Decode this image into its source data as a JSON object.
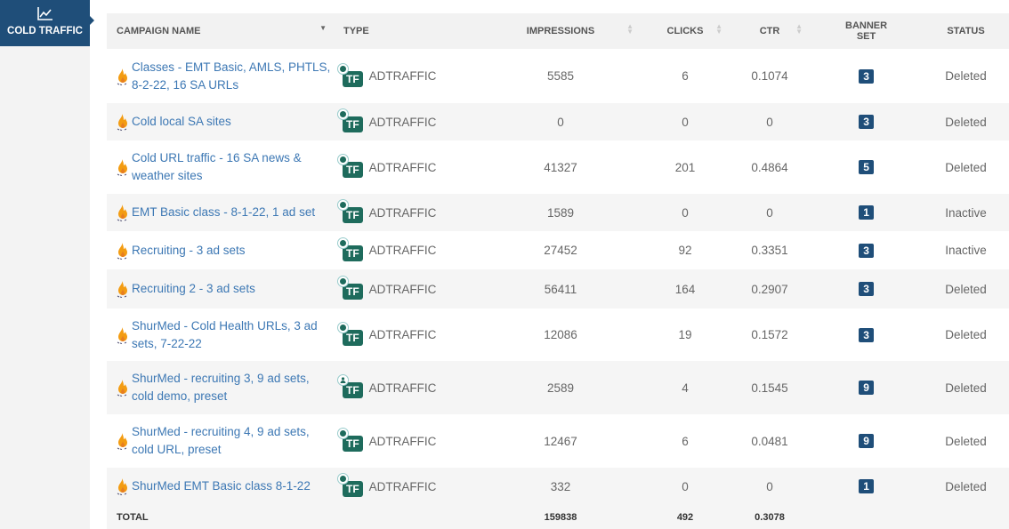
{
  "sidebar": {
    "tab": {
      "label": "COLD TRAFFIC",
      "icon": "line-chart-icon"
    }
  },
  "table": {
    "headers": {
      "name": "CAMPAIGN NAME",
      "type": "TYPE",
      "impressions": "IMPRESSIONS",
      "clicks": "CLICKS",
      "ctr": "CTR",
      "banner_set": "BANNER SET",
      "status": "STATUS"
    },
    "rows": [
      {
        "name": "Classes - EMT Basic, AMLS, PHTLS, 8-2-22, 16 SA URLs",
        "type_badge": "TF",
        "type": "ADTRAFFIC",
        "target_icon": "globe-icon",
        "impressions": "5585",
        "clicks": "6",
        "ctr": "0.1074",
        "banner_set": "3",
        "status": "Deleted"
      },
      {
        "name": "Cold local SA sites",
        "type_badge": "TF",
        "type": "ADTRAFFIC",
        "target_icon": "globe-icon",
        "impressions": "0",
        "clicks": "0",
        "ctr": "0",
        "banner_set": "3",
        "status": "Deleted"
      },
      {
        "name": "Cold URL traffic - 16 SA news & weather sites",
        "type_badge": "TF",
        "type": "ADTRAFFIC",
        "target_icon": "globe-icon",
        "impressions": "41327",
        "clicks": "201",
        "ctr": "0.4864",
        "banner_set": "5",
        "status": "Deleted"
      },
      {
        "name": "EMT Basic class - 8-1-22, 1 ad set",
        "type_badge": "TF",
        "type": "ADTRAFFIC",
        "target_icon": "globe-icon",
        "impressions": "1589",
        "clicks": "0",
        "ctr": "0",
        "banner_set": "1",
        "status": "Inactive"
      },
      {
        "name": "Recruiting - 3 ad sets",
        "type_badge": "TF",
        "type": "ADTRAFFIC",
        "target_icon": "globe-icon",
        "impressions": "27452",
        "clicks": "92",
        "ctr": "0.3351",
        "banner_set": "3",
        "status": "Inactive"
      },
      {
        "name": "Recruiting 2 - 3 ad sets",
        "type_badge": "TF",
        "type": "ADTRAFFIC",
        "target_icon": "globe-icon",
        "impressions": "56411",
        "clicks": "164",
        "ctr": "0.2907",
        "banner_set": "3",
        "status": "Deleted"
      },
      {
        "name": "ShurMed - Cold Health URLs, 3 ad sets, 7-22-22",
        "type_badge": "TF",
        "type": "ADTRAFFIC",
        "target_icon": "globe-icon",
        "impressions": "12086",
        "clicks": "19",
        "ctr": "0.1572",
        "banner_set": "3",
        "status": "Deleted"
      },
      {
        "name": "ShurMed - recruiting 3, 9 ad sets, cold demo, preset",
        "type_badge": "TF",
        "type": "ADTRAFFIC",
        "target_icon": "person-icon",
        "impressions": "2589",
        "clicks": "4",
        "ctr": "0.1545",
        "banner_set": "9",
        "status": "Deleted"
      },
      {
        "name": "ShurMed - recruiting 4, 9 ad sets, cold URL, preset",
        "type_badge": "TF",
        "type": "ADTRAFFIC",
        "target_icon": "globe-icon",
        "impressions": "12467",
        "clicks": "6",
        "ctr": "0.0481",
        "banner_set": "9",
        "status": "Deleted"
      },
      {
        "name": "ShurMed EMT Basic class 8-1-22",
        "type_badge": "TF",
        "type": "ADTRAFFIC",
        "target_icon": "globe-icon",
        "impressions": "332",
        "clicks": "0",
        "ctr": "0",
        "banner_set": "1",
        "status": "Deleted"
      }
    ],
    "total": {
      "label": "TOTAL",
      "impressions": "159838",
      "clicks": "492",
      "ctr": "0.3078"
    }
  },
  "colors": {
    "brand_blue": "#1f4e79",
    "tf_green": "#1e6b5c",
    "link": "#3d78b4",
    "fire": "#f39c12"
  }
}
